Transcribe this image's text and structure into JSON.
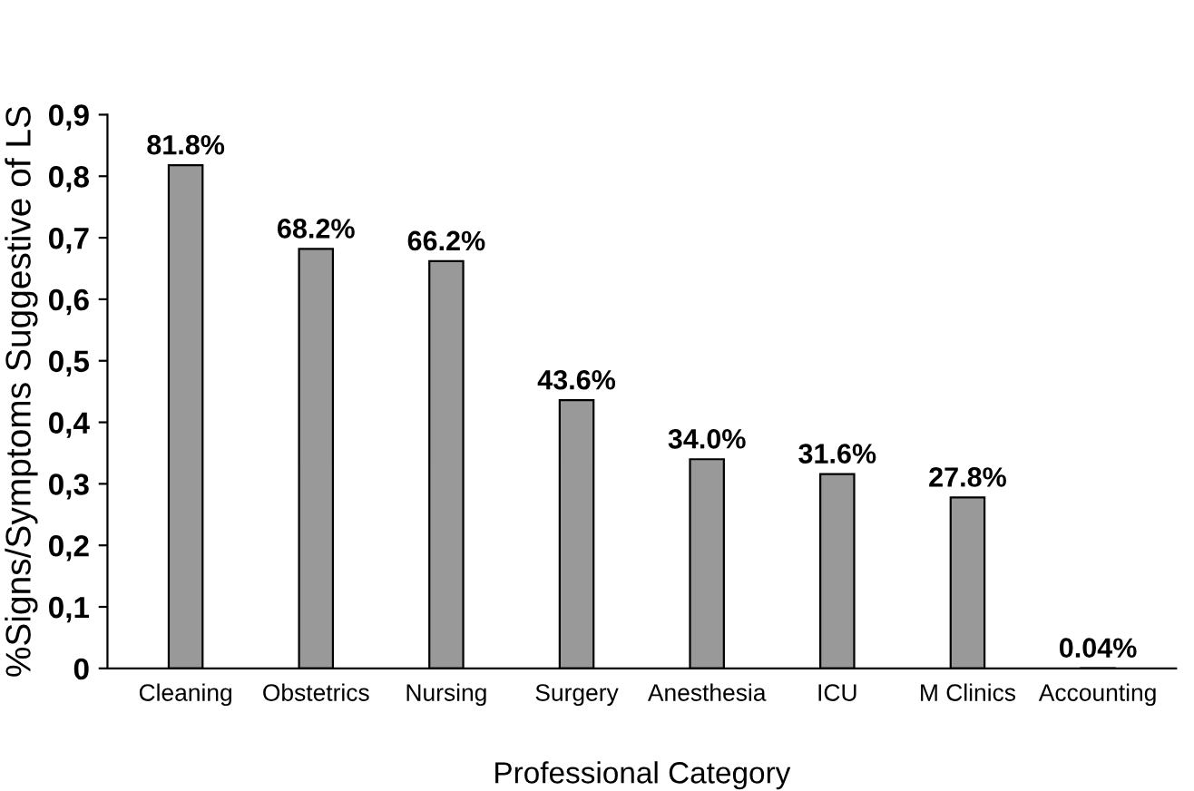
{
  "chart_data": {
    "type": "bar",
    "xlabel": "Professional Category",
    "ylabel": "%Signs/Symptoms Suggestive of LS",
    "categories": [
      "Cleaning",
      "Obstetrics",
      "Nursing",
      "Surgery",
      "Anesthesia",
      "ICU",
      "M Clinics",
      "Accounting"
    ],
    "values": [
      0.818,
      0.682,
      0.662,
      0.436,
      0.34,
      0.316,
      0.278,
      0.0004
    ],
    "value_labels": [
      "81.8%",
      "68.2%",
      "66.2%",
      "43.6%",
      "34.0%",
      "31.6%",
      "27.8%",
      "0.04%"
    ],
    "color": "#999999",
    "ylim": [
      0,
      0.9
    ],
    "yticks": [
      0,
      {
        "value": 0.1,
        "label": "0,1"
      },
      {
        "value": 0.2,
        "label": "0,2"
      },
      {
        "value": 0.3,
        "label": "0,3"
      },
      {
        "value": 0.4,
        "label": "0,4"
      },
      {
        "value": 0.5,
        "label": "0,5"
      },
      {
        "value": 0.6,
        "label": "0,6"
      },
      {
        "value": 0.7,
        "label": "0,7"
      },
      {
        "value": 0.8,
        "label": "0,8"
      },
      {
        "value": 0.9,
        "label": "0,9"
      }
    ],
    "grid": false,
    "legend": false
  }
}
